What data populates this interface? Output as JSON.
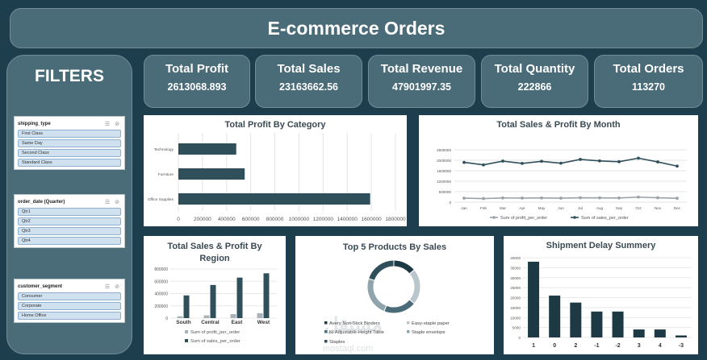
{
  "header": {
    "title": "E-commerce Orders"
  },
  "filters": {
    "title": "FILTERS",
    "slicers": [
      {
        "title": "shipping_type",
        "items": [
          "First Class",
          "Same Day",
          "Second Class",
          "Standard Class"
        ]
      },
      {
        "title": "order_date (Quarter)",
        "items": [
          "Qtr1",
          "Qtr2",
          "Qtr3",
          "Qtr4"
        ]
      },
      {
        "title": "customer_segment",
        "items": [
          "Consumer",
          "Corporate",
          "Home Office"
        ]
      }
    ]
  },
  "kpis": [
    {
      "label": "Total Profit",
      "value": "2613068.893"
    },
    {
      "label": "Total Sales",
      "value": "23163662.56"
    },
    {
      "label": "Total Revenue",
      "value": "47901997.35"
    },
    {
      "label": "Total Quantity",
      "value": "222866"
    },
    {
      "label": "Total Orders",
      "value": "113270"
    }
  ],
  "chart_data": [
    {
      "type": "bar",
      "title": "Total Profit By Category",
      "categories": [
        "Technology",
        "Furniture",
        "Office Supplies"
      ],
      "values": [
        480000,
        550000,
        1590000
      ],
      "xlim": [
        0,
        1800000
      ],
      "ticks": [
        "0",
        "200000",
        "400000",
        "600000",
        "800000",
        "1000000",
        "1200000",
        "1400000",
        "1600000",
        "1800000"
      ],
      "colors": {
        "bar": "#2f4f5a"
      }
    },
    {
      "type": "line",
      "title": "Total Sales & Profit By Month",
      "categories": [
        "Jan",
        "Feb",
        "Mar",
        "Apr",
        "May",
        "Jun",
        "Jul",
        "Aug",
        "Sep",
        "Oct",
        "Nov",
        "Dec"
      ],
      "ylim": [
        0,
        2500000
      ],
      "yticks": [
        "0",
        "500000",
        "1000000",
        "1500000",
        "2000000",
        "2500000"
      ],
      "series": [
        {
          "name": "Sum of profit_per_order",
          "values": [
            190000,
            170000,
            200000,
            195000,
            200000,
            190000,
            210000,
            205000,
            200000,
            240000,
            210000,
            185000
          ],
          "color": "#9aa3a8"
        },
        {
          "name": "Sum of sales_per_order",
          "values": [
            1900000,
            1780000,
            1960000,
            1850000,
            1950000,
            1860000,
            2040000,
            1970000,
            1930000,
            2100000,
            1920000,
            1720000
          ],
          "color": "#2f4f5a"
        }
      ]
    },
    {
      "type": "bar",
      "title": "Total Sales & Profit By Region",
      "categories": [
        "South",
        "Central",
        "East",
        "West"
      ],
      "ylim": [
        0,
        800000
      ],
      "yticks": [
        "0",
        "200000",
        "400000",
        "600000",
        "800000"
      ],
      "series": [
        {
          "name": "Sum of profit_per_order",
          "values": [
            30000,
            45000,
            65000,
            80000
          ],
          "color": "#a8b3b8"
        },
        {
          "name": "Sum of sales_per_order",
          "values": [
            370000,
            540000,
            660000,
            730000
          ],
          "color": "#2f4f5a"
        }
      ]
    },
    {
      "type": "pie",
      "title": "Top 5 Products By Sales",
      "legend": [
        "Avery Non-Stick Binders",
        "Easy-staple paper",
        "KI Adjustable-Height Table",
        "Staple envelope",
        "Staples"
      ],
      "values": [
        14,
        22,
        20,
        24,
        20
      ],
      "colors": [
        "#1d3a44",
        "#b9c6cc",
        "#4a6b78",
        "#8fa4ad",
        "#2f4f5a"
      ]
    },
    {
      "type": "bar",
      "title": "Shipment Delay Summery",
      "categories": [
        "1",
        "0",
        "2",
        "-1",
        "-2",
        "3",
        "4",
        "-3"
      ],
      "values": [
        38000,
        21000,
        17500,
        13000,
        13000,
        4000,
        4000,
        1000
      ],
      "ylim": [
        0,
        40000
      ],
      "yticks": [
        "0",
        "5000",
        "10000",
        "15000",
        "20000",
        "25000",
        "30000",
        "35000",
        "40000"
      ],
      "colors": {
        "bar": "#1d3a44"
      }
    }
  ],
  "watermark": {
    "text": "مستقل",
    "subtext": "mostaql.com"
  }
}
